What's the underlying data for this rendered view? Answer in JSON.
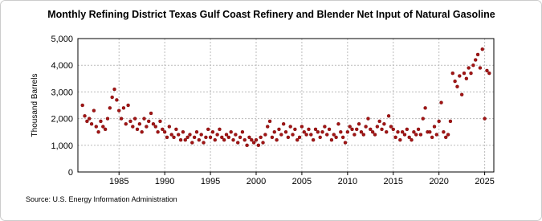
{
  "chart_data": {
    "type": "scatter",
    "title": "Monthly Refining District Texas Gulf Coast Refinery and Blender Net Input of Natural Gasoline",
    "y_label": "Thousand Barrels",
    "source": "Source: U.S. Energy Information Administration",
    "color": "#a31515",
    "grid": true,
    "xlim": [
      1980.5,
      2026
    ],
    "xticks": [
      1985,
      1990,
      1995,
      2000,
      2005,
      2010,
      2015,
      2020,
      2025
    ],
    "ylim": [
      0,
      5000
    ],
    "yticks": [
      0,
      {
        "value": 1000,
        "label": "1,000"
      },
      {
        "value": 2000,
        "label": "2,000"
      },
      {
        "value": 3000,
        "label": "3,000"
      },
      {
        "value": 4000,
        "label": "4,000"
      },
      {
        "value": 5000,
        "label": "5,000"
      }
    ],
    "x": [
      1981,
      1981.25,
      1981.5,
      1981.75,
      1982,
      1982.25,
      1982.5,
      1982.75,
      1983,
      1983.25,
      1983.5,
      1983.75,
      1984,
      1984.25,
      1984.5,
      1984.75,
      1985,
      1985.25,
      1985.5,
      1985.75,
      1986,
      1986.25,
      1986.5,
      1986.75,
      1987,
      1987.25,
      1987.5,
      1987.75,
      1988,
      1988.25,
      1988.5,
      1988.75,
      1989,
      1989.25,
      1989.5,
      1989.75,
      1990,
      1990.25,
      1990.5,
      1990.75,
      1991,
      1991.25,
      1991.5,
      1991.75,
      1992,
      1992.25,
      1992.5,
      1992.75,
      1993,
      1993.25,
      1993.5,
      1993.75,
      1994,
      1994.25,
      1994.5,
      1994.75,
      1995,
      1995.25,
      1995.5,
      1995.75,
      1996,
      1996.25,
      1996.5,
      1996.75,
      1997,
      1997.25,
      1997.5,
      1997.75,
      1998,
      1998.25,
      1998.5,
      1998.75,
      1999,
      1999.25,
      1999.5,
      1999.75,
      2000,
      2000.25,
      2000.5,
      2000.75,
      2001,
      2001.25,
      2001.5,
      2001.75,
      2002,
      2002.25,
      2002.5,
      2002.75,
      2003,
      2003.25,
      2003.5,
      2003.75,
      2004,
      2004.25,
      2004.5,
      2004.75,
      2005,
      2005.25,
      2005.5,
      2005.75,
      2006,
      2006.25,
      2006.5,
      2006.75,
      2007,
      2007.25,
      2007.5,
      2007.75,
      2008,
      2008.25,
      2008.5,
      2008.75,
      2009,
      2009.25,
      2009.5,
      2009.75,
      2010,
      2010.25,
      2010.5,
      2010.75,
      2011,
      2011.25,
      2011.5,
      2011.75,
      2012,
      2012.25,
      2012.5,
      2012.75,
      2013,
      2013.25,
      2013.5,
      2013.75,
      2014,
      2014.25,
      2014.5,
      2014.75,
      2015,
      2015.25,
      2015.5,
      2015.75,
      2016,
      2016.25,
      2016.5,
      2016.75,
      2017,
      2017.25,
      2017.5,
      2017.75,
      2018,
      2018.25,
      2018.5,
      2018.75,
      2019,
      2019.25,
      2019.5,
      2019.75,
      2020,
      2020.25,
      2020.5,
      2020.75,
      2021,
      2021.25,
      2021.5,
      2021.75,
      2022,
      2022.25,
      2022.5,
      2022.75,
      2023,
      2023.25,
      2023.5,
      2023.75,
      2024,
      2024.25,
      2024.5,
      2024.75,
      2025,
      2025.25,
      2025.5
    ],
    "values": [
      2500,
      2100,
      1900,
      2000,
      1800,
      2300,
      1700,
      1500,
      1900,
      1700,
      1600,
      2000,
      2400,
      2800,
      3100,
      2700,
      2300,
      2000,
      2400,
      1800,
      2500,
      1900,
      1700,
      2000,
      1600,
      1800,
      1500,
      2000,
      1700,
      1900,
      2200,
      1800,
      1700,
      1500,
      1900,
      1600,
      1500,
      1300,
      1700,
      1400,
      1300,
      1600,
      1400,
      1200,
      1500,
      1200,
      1300,
      1400,
      1100,
      1300,
      1500,
      1200,
      1400,
      1100,
      1300,
      1600,
      1300,
      1500,
      1200,
      1400,
      1600,
      1300,
      1200,
      1400,
      1300,
      1500,
      1200,
      1400,
      1100,
      1300,
      1500,
      1200,
      1000,
      1300,
      1200,
      1100,
      1200,
      1000,
      1300,
      1100,
      1400,
      1700,
      1900,
      1300,
      1500,
      1200,
      1600,
      1400,
      1800,
      1500,
      1300,
      1700,
      1400,
      1600,
      1200,
      1300,
      1700,
      1500,
      1400,
      1600,
      1400,
      1200,
      1600,
      1500,
      1300,
      1500,
      1700,
      1400,
      1600,
      1200,
      1400,
      1300,
      1800,
      1500,
      1300,
      1100,
      1500,
      1700,
      1600,
      1400,
      1600,
      1800,
      1500,
      1400,
      1700,
      2000,
      1600,
      1500,
      1400,
      1700,
      1900,
      1600,
      1800,
      1500,
      2100,
      1700,
      1600,
      1300,
      1500,
      1200,
      1500,
      1400,
      1600,
      1300,
      1200,
      1500,
      1400,
      1600,
      1400,
      2000,
      2400,
      1500,
      1500,
      1300,
      1700,
      1400,
      1900,
      2600,
      1500,
      1300,
      1400,
      1900,
      3700,
      3400,
      3200,
      3600,
      2900,
      3700,
      3500,
      3900,
      3700,
      4000,
      4200,
      4400,
      3900,
      4600,
      2000,
      3800,
      3700
    ]
  }
}
